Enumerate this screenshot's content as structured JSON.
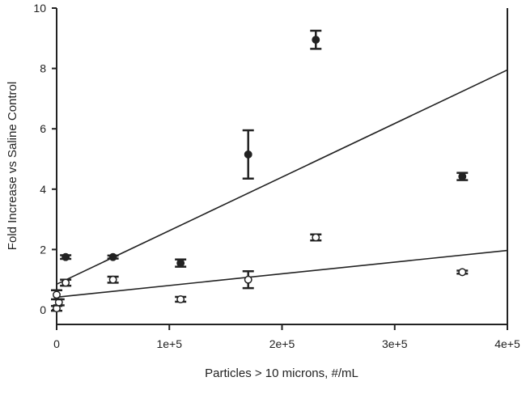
{
  "chart_data": {
    "type": "scatter",
    "title": "",
    "xlabel": "Particles > 10 microns, #/mL",
    "ylabel": "Fold Increase vs Saline Control",
    "xlim": [
      0,
      400000
    ],
    "ylim": [
      -0.6,
      10
    ],
    "xticks": [
      0,
      100000,
      200000,
      300000,
      400000
    ],
    "xtick_labels": [
      "0",
      "1e+5",
      "2e+5",
      "3e+5",
      "4e+5"
    ],
    "yticks": [
      0,
      2,
      4,
      6,
      8,
      10
    ],
    "ytick_labels": [
      "0",
      "2",
      "4",
      "6",
      "8",
      "10"
    ],
    "grid": false,
    "legend": "none",
    "series": [
      {
        "name": "filled",
        "marker": "filled-circle",
        "points": [
          {
            "x": 8000,
            "y": 1.75,
            "err": 0.06
          },
          {
            "x": 50000,
            "y": 1.75,
            "err": 0.05
          },
          {
            "x": 110000,
            "y": 1.55,
            "err": 0.12
          },
          {
            "x": 170000,
            "y": 5.15,
            "err": 0.8
          },
          {
            "x": 230000,
            "y": 8.95,
            "err": 0.3
          },
          {
            "x": 360000,
            "y": 4.42,
            "err": 0.12
          }
        ],
        "fit": {
          "intercept": 0.85,
          "slope": 1.775e-05
        }
      },
      {
        "name": "open",
        "marker": "open-circle",
        "points": [
          {
            "x": 0,
            "y": 0.05,
            "err": 0.08
          },
          {
            "x": 2000,
            "y": 0.25,
            "err": 0.1
          },
          {
            "x": 0,
            "y": 0.5,
            "err": 0.15
          },
          {
            "x": 8000,
            "y": 0.9,
            "err": 0.1
          },
          {
            "x": 50000,
            "y": 1.0,
            "err": 0.1
          },
          {
            "x": 110000,
            "y": 0.35,
            "err": 0.08
          },
          {
            "x": 170000,
            "y": 1.0,
            "err": 0.28
          },
          {
            "x": 230000,
            "y": 2.4,
            "err": 0.1
          },
          {
            "x": 360000,
            "y": 1.25,
            "err": 0.05
          }
        ],
        "fit": {
          "intercept": 0.42,
          "slope": 3.875e-06
        }
      }
    ]
  }
}
